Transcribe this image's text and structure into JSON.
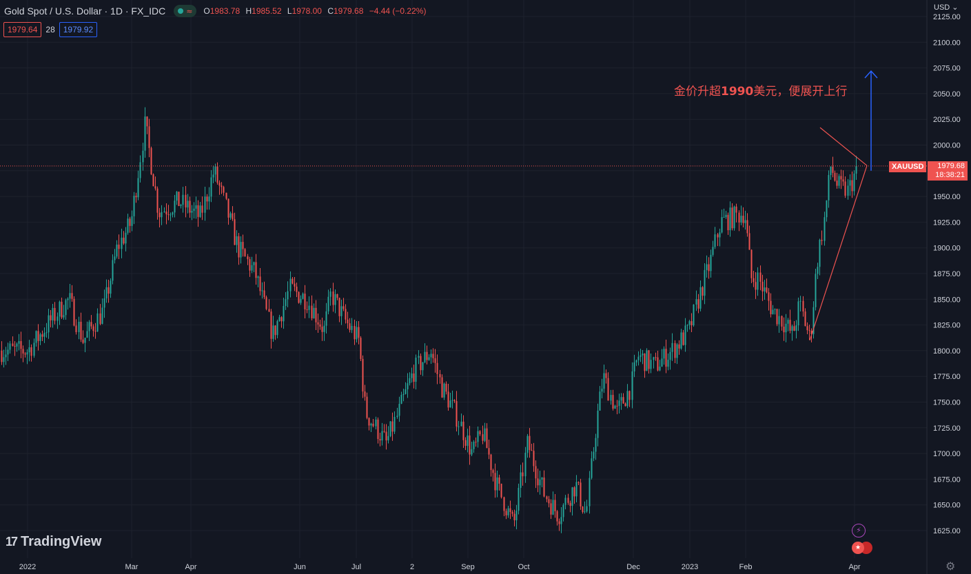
{
  "header": {
    "symbol_title": "Gold Spot / U.S. Dollar · 1D · FX_IDC",
    "wave_glyph": "≈",
    "ohlc": [
      {
        "k": "O",
        "v": "1983.78"
      },
      {
        "k": "H",
        "v": "1985.52"
      },
      {
        "k": "L",
        "v": "1978.00"
      },
      {
        "k": "C",
        "v": "1979.68"
      },
      {
        "k": "",
        "v": "−4.44 (−0.22%)"
      }
    ],
    "sell_price": "1979.64",
    "spread": "28",
    "buy_price": "1979.92"
  },
  "currency_label": "USD",
  "annotation": {
    "prefix": "金价升超",
    "number": "1990",
    "suffix": "美元，便展开上行"
  },
  "price_tag": {
    "symbol": "XAUUSD",
    "price": "1979.68",
    "countdown": "18:38:21"
  },
  "logo": {
    "mark": "17",
    "text": "TradingView"
  },
  "colors": {
    "up": "#26a69a",
    "down": "#ef5350",
    "background": "#131722",
    "grid": "#1e222d",
    "annotation": "#ef5350",
    "arrow": "#2962ff"
  },
  "icons": [
    "lightning-icon",
    "us-flag-icon",
    "gear-icon"
  ],
  "chart_data": {
    "type": "candlestick",
    "ylim": [
      1600,
      2130
    ],
    "y_ticks": [
      2125,
      2100,
      2075,
      2050,
      2025,
      2000,
      1975,
      1950,
      1925,
      1900,
      1875,
      1850,
      1825,
      1800,
      1775,
      1750,
      1725,
      1700,
      1675,
      1650,
      1625
    ],
    "x_ticks": [
      "2022",
      "Mar",
      "Apr",
      "Jun",
      "Jul",
      "2",
      "Sep",
      "Oct",
      "Dec",
      "2023",
      "Feb",
      "Apr"
    ],
    "x_tick_positions": [
      40,
      191,
      277,
      435,
      517,
      598,
      679,
      760,
      919,
      1001,
      1082,
      1240
    ],
    "anchors": [
      [
        0,
        1800
      ],
      [
        40,
        1800
      ],
      [
        80,
        1835
      ],
      [
        100,
        1850
      ],
      [
        120,
        1810
      ],
      [
        150,
        1840
      ],
      [
        170,
        1900
      ],
      [
        190,
        1925
      ],
      [
        210,
        2020
      ],
      [
        230,
        1935
      ],
      [
        260,
        1945
      ],
      [
        290,
        1930
      ],
      [
        310,
        1975
      ],
      [
        320,
        1955
      ],
      [
        345,
        1900
      ],
      [
        370,
        1875
      ],
      [
        395,
        1815
      ],
      [
        420,
        1860
      ],
      [
        445,
        1850
      ],
      [
        470,
        1820
      ],
      [
        480,
        1855
      ],
      [
        500,
        1830
      ],
      [
        520,
        1810
      ],
      [
        530,
        1740
      ],
      [
        560,
        1710
      ],
      [
        575,
        1735
      ],
      [
        600,
        1780
      ],
      [
        625,
        1800
      ],
      [
        640,
        1765
      ],
      [
        660,
        1740
      ],
      [
        685,
        1700
      ],
      [
        700,
        1720
      ],
      [
        720,
        1670
      ],
      [
        745,
        1630
      ],
      [
        765,
        1710
      ],
      [
        790,
        1660
      ],
      [
        810,
        1640
      ],
      [
        835,
        1670
      ],
      [
        850,
        1640
      ],
      [
        865,
        1730
      ],
      [
        875,
        1775
      ],
      [
        895,
        1740
      ],
      [
        915,
        1765
      ],
      [
        925,
        1795
      ],
      [
        950,
        1785
      ],
      [
        975,
        1800
      ],
      [
        1000,
        1820
      ],
      [
        1015,
        1855
      ],
      [
        1030,
        1885
      ],
      [
        1045,
        1925
      ],
      [
        1065,
        1930
      ],
      [
        1080,
        1935
      ],
      [
        1090,
        1870
      ],
      [
        1100,
        1870
      ],
      [
        1120,
        1840
      ],
      [
        1140,
        1825
      ],
      [
        1150,
        1815
      ],
      [
        1160,
        1845
      ],
      [
        1175,
        1810
      ],
      [
        1185,
        1885
      ],
      [
        1195,
        1925
      ],
      [
        1205,
        1980
      ],
      [
        1215,
        1960
      ],
      [
        1230,
        1955
      ],
      [
        1245,
        1980
      ]
    ],
    "last_close": 1979.68,
    "triangle_upper": [
      [
        1190,
        2017
      ],
      [
        1258,
        1980
      ]
    ],
    "triangle_lower": [
      [
        1175,
        1810
      ],
      [
        1258,
        1980
      ]
    ],
    "arrow": {
      "from": 1975,
      "to": 2072,
      "x": 1264
    }
  }
}
